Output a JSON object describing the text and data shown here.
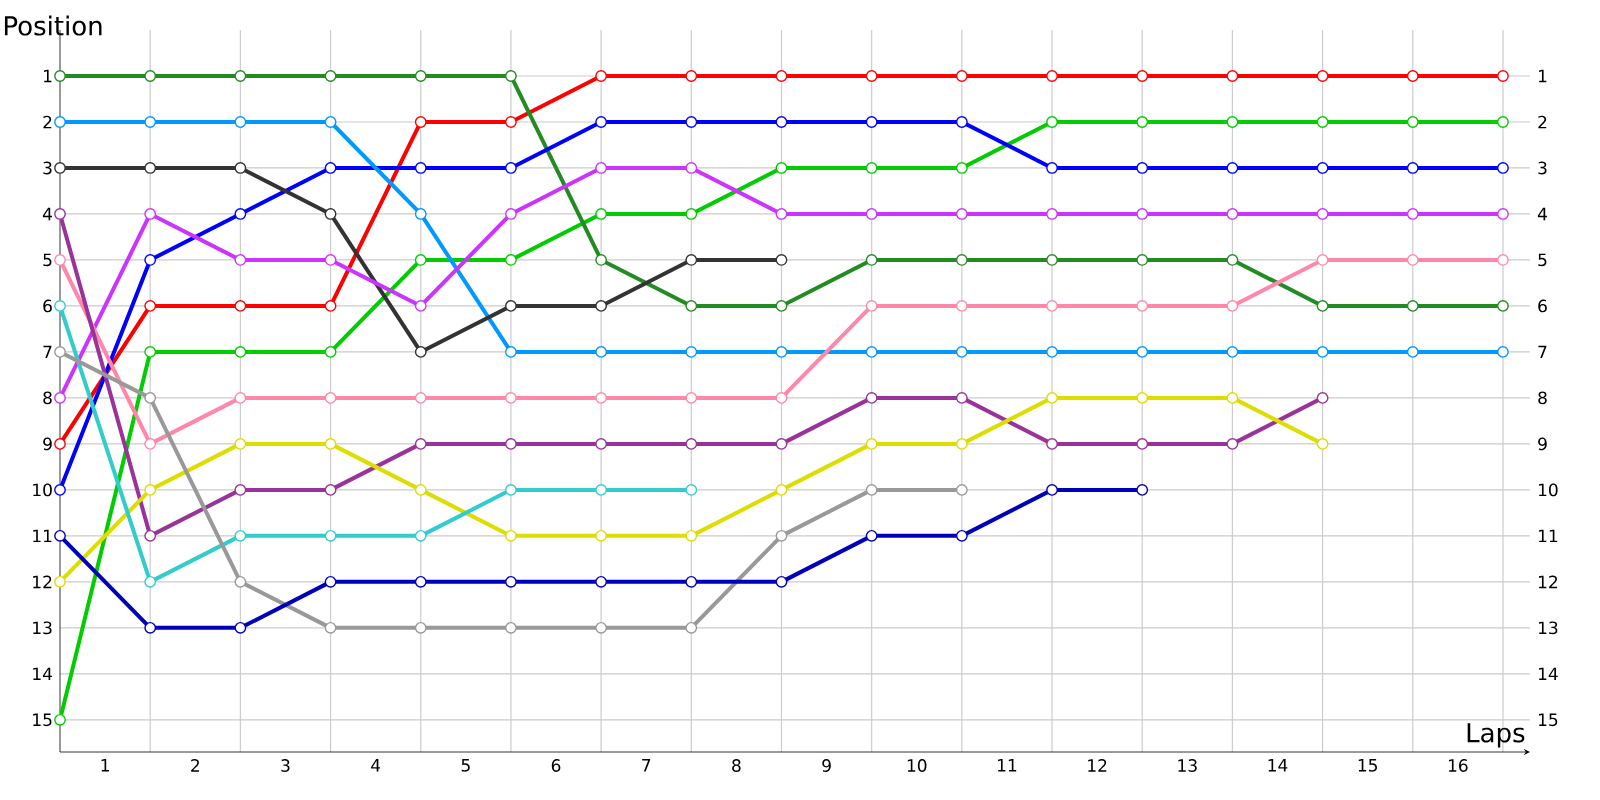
{
  "chart_data": {
    "type": "line",
    "xlabel": "Laps",
    "ylabel": "Position",
    "x": [
      0,
      1,
      2,
      3,
      4,
      5,
      6,
      7,
      8,
      9,
      10,
      11,
      12,
      13,
      14,
      15,
      16
    ],
    "series": [
      {
        "color": "#ff0000",
        "values": [
          9,
          6,
          6,
          6,
          2,
          2,
          1,
          1,
          1,
          1,
          1,
          1,
          1,
          1,
          1,
          1,
          1
        ]
      },
      {
        "color": "#00cc00",
        "values": [
          15,
          7,
          7,
          7,
          5,
          5,
          4,
          4,
          3,
          3,
          3,
          2,
          2,
          2,
          2,
          2,
          2
        ]
      },
      {
        "color": "#228b22",
        "values": [
          1,
          1,
          1,
          1,
          1,
          1,
          5,
          6,
          6,
          5,
          5,
          5,
          5,
          5,
          6,
          6,
          6
        ]
      },
      {
        "color": "#0000ff",
        "values": [
          10,
          5,
          4,
          3,
          3,
          3,
          2,
          2,
          2,
          2,
          2,
          3,
          3,
          3,
          3,
          3,
          3
        ]
      },
      {
        "color": "#0099ff",
        "values": [
          2,
          2,
          2,
          2,
          4,
          7,
          7,
          7,
          7,
          7,
          7,
          7,
          7,
          7,
          7,
          7,
          7
        ]
      },
      {
        "color": "#333333",
        "values": [
          3,
          3,
          3,
          4,
          7,
          6,
          6,
          5,
          5,
          null,
          null,
          null,
          null,
          null,
          null,
          null,
          null
        ]
      },
      {
        "color": "#cc33ff",
        "values": [
          8,
          4,
          5,
          5,
          6,
          4,
          3,
          3,
          4,
          4,
          4,
          4,
          4,
          4,
          4,
          4,
          4
        ]
      },
      {
        "color": "#ff88aa",
        "values": [
          5,
          9,
          8,
          8,
          8,
          8,
          8,
          8,
          8,
          6,
          6,
          6,
          6,
          6,
          5,
          5,
          5
        ]
      },
      {
        "color": "#993399",
        "values": [
          4,
          11,
          10,
          10,
          9,
          9,
          9,
          9,
          9,
          8,
          8,
          9,
          9,
          9,
          8,
          null,
          null
        ]
      },
      {
        "color": "#dddd00",
        "values": [
          12,
          10,
          9,
          9,
          10,
          11,
          11,
          11,
          10,
          9,
          9,
          8,
          8,
          8,
          9,
          null,
          null
        ]
      },
      {
        "color": "#33cccc",
        "values": [
          6,
          12,
          11,
          11,
          11,
          10,
          10,
          10,
          null,
          null,
          null,
          null,
          null,
          null,
          null,
          null,
          null
        ]
      },
      {
        "color": "#999999",
        "values": [
          7,
          8,
          12,
          13,
          13,
          13,
          13,
          13,
          11,
          10,
          10,
          null,
          null,
          null,
          null,
          null,
          null
        ]
      },
      {
        "color": "#0000bb",
        "values": [
          11,
          13,
          13,
          12,
          12,
          12,
          12,
          12,
          12,
          11,
          11,
          10,
          10,
          null,
          null,
          null,
          null
        ]
      }
    ],
    "xlim": [
      0,
      16.3
    ],
    "ylim": [
      15.7,
      0
    ],
    "xticks": [
      {
        "value": 0.5,
        "label": "1"
      },
      {
        "value": 1.5,
        "label": "2"
      },
      {
        "value": 2.5,
        "label": "3"
      },
      {
        "value": 3.5,
        "label": "4"
      },
      {
        "value": 4.5,
        "label": "5"
      },
      {
        "value": 5.5,
        "label": "6"
      },
      {
        "value": 6.5,
        "label": "7"
      },
      {
        "value": 7.5,
        "label": "8"
      },
      {
        "value": 8.5,
        "label": "9"
      },
      {
        "value": 9.5,
        "label": "10"
      },
      {
        "value": 10.5,
        "label": "11"
      },
      {
        "value": 11.5,
        "label": "12"
      },
      {
        "value": 12.5,
        "label": "13"
      },
      {
        "value": 13.5,
        "label": "14"
      },
      {
        "value": 14.5,
        "label": "15"
      },
      {
        "value": 15.5,
        "label": "16"
      },
      {
        "value": 1,
        "label": null
      },
      {
        "value": 2,
        "label": null
      },
      {
        "value": 3,
        "label": null
      },
      {
        "value": 4,
        "label": null
      },
      {
        "value": 5,
        "label": null
      },
      {
        "value": 6,
        "label": null
      },
      {
        "value": 7,
        "label": null
      },
      {
        "value": 8,
        "label": null
      },
      {
        "value": 9,
        "label": null
      },
      {
        "value": 10,
        "label": null
      },
      {
        "value": 11,
        "label": null
      },
      {
        "value": 12,
        "label": null
      },
      {
        "value": 13,
        "label": null
      },
      {
        "value": 14,
        "label": null
      },
      {
        "value": 15,
        "label": null
      },
      {
        "value": 16,
        "label": null
      }
    ],
    "yticks": [
      1,
      2,
      3,
      4,
      5,
      6,
      7,
      8,
      9,
      10,
      11,
      12,
      13,
      14,
      15
    ],
    "y2lim": [
      15.7,
      0
    ],
    "y2ticks": [
      1,
      2,
      3,
      4,
      5,
      6,
      7,
      8,
      9,
      10,
      11,
      12,
      13,
      14,
      15
    ],
    "grid": true,
    "marker": "circle",
    "line_style": "solid"
  }
}
